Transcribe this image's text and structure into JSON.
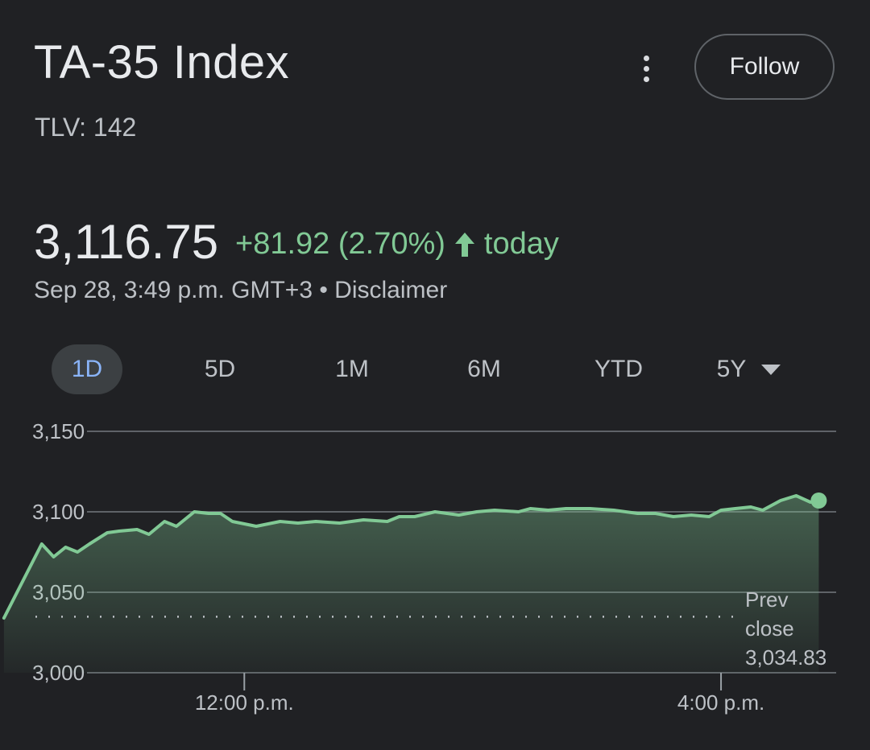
{
  "header": {
    "title": "TA-35 Index",
    "ticker": "TLV: 142",
    "follow_label": "Follow"
  },
  "quote": {
    "price": "3,116.75",
    "change": "+81.92 (2.70%)",
    "period_label": "today",
    "timestamp": "Sep 28, 3:49 p.m. GMT+3 • Disclaimer"
  },
  "tabs": [
    {
      "label": "1D",
      "active": true
    },
    {
      "label": "5D",
      "active": false
    },
    {
      "label": "1M",
      "active": false
    },
    {
      "label": "6M",
      "active": false
    },
    {
      "label": "YTD",
      "active": false
    },
    {
      "label": "5Y",
      "active": false
    }
  ],
  "colors": {
    "up": "#81c995",
    "background": "#202124",
    "grid": "#5f6368",
    "active_tab_text": "#8ab4f8"
  },
  "icons": {
    "menu": "more-vert-icon",
    "arrow": "arrow-up-icon",
    "dropdown": "triangle-down-icon"
  },
  "chart_data": {
    "type": "area",
    "ylim": [
      3000,
      3150
    ],
    "yticks": [
      3150,
      3100,
      3050,
      3000
    ],
    "ytick_labels": [
      "3,150",
      "3,100",
      "3,050",
      "3,000"
    ],
    "xlim": [
      9.95,
      17.25
    ],
    "xticks": [
      12,
      16
    ],
    "xtick_labels": [
      "12:00 p.m.",
      "4:00 p.m."
    ],
    "prev_close": 3034.83,
    "prev_close_label": [
      "Prev",
      "close",
      "3,034.83"
    ],
    "grid": true,
    "x": [
      9.983,
      10.3,
      10.4,
      10.5,
      10.6,
      10.7,
      10.85,
      10.95,
      11.1,
      11.2,
      11.33,
      11.43,
      11.58,
      11.7,
      11.8,
      11.9,
      12.1,
      12.3,
      12.45,
      12.6,
      12.8,
      13.0,
      13.2,
      13.3,
      13.43,
      13.6,
      13.8,
      13.95,
      14.1,
      14.3,
      14.4,
      14.55,
      14.7,
      14.9,
      15.1,
      15.3,
      15.45,
      15.6,
      15.75,
      15.9,
      16.0,
      16.12,
      16.25,
      16.35,
      16.5,
      16.63,
      16.75,
      16.82
    ],
    "y": [
      3034,
      3080,
      3072,
      3078,
      3075,
      3080,
      3087,
      3088,
      3089,
      3086,
      3094,
      3091,
      3100,
      3099,
      3099,
      3094,
      3091,
      3094,
      3093,
      3094,
      3093,
      3095,
      3094,
      3097,
      3097,
      3100,
      3098,
      3100,
      3101,
      3100,
      3102,
      3101,
      3102,
      3102,
      3101,
      3099,
      3099,
      3097,
      3098,
      3097,
      3101,
      3102,
      3103,
      3101,
      3107,
      3110,
      3106,
      3107
    ]
  }
}
